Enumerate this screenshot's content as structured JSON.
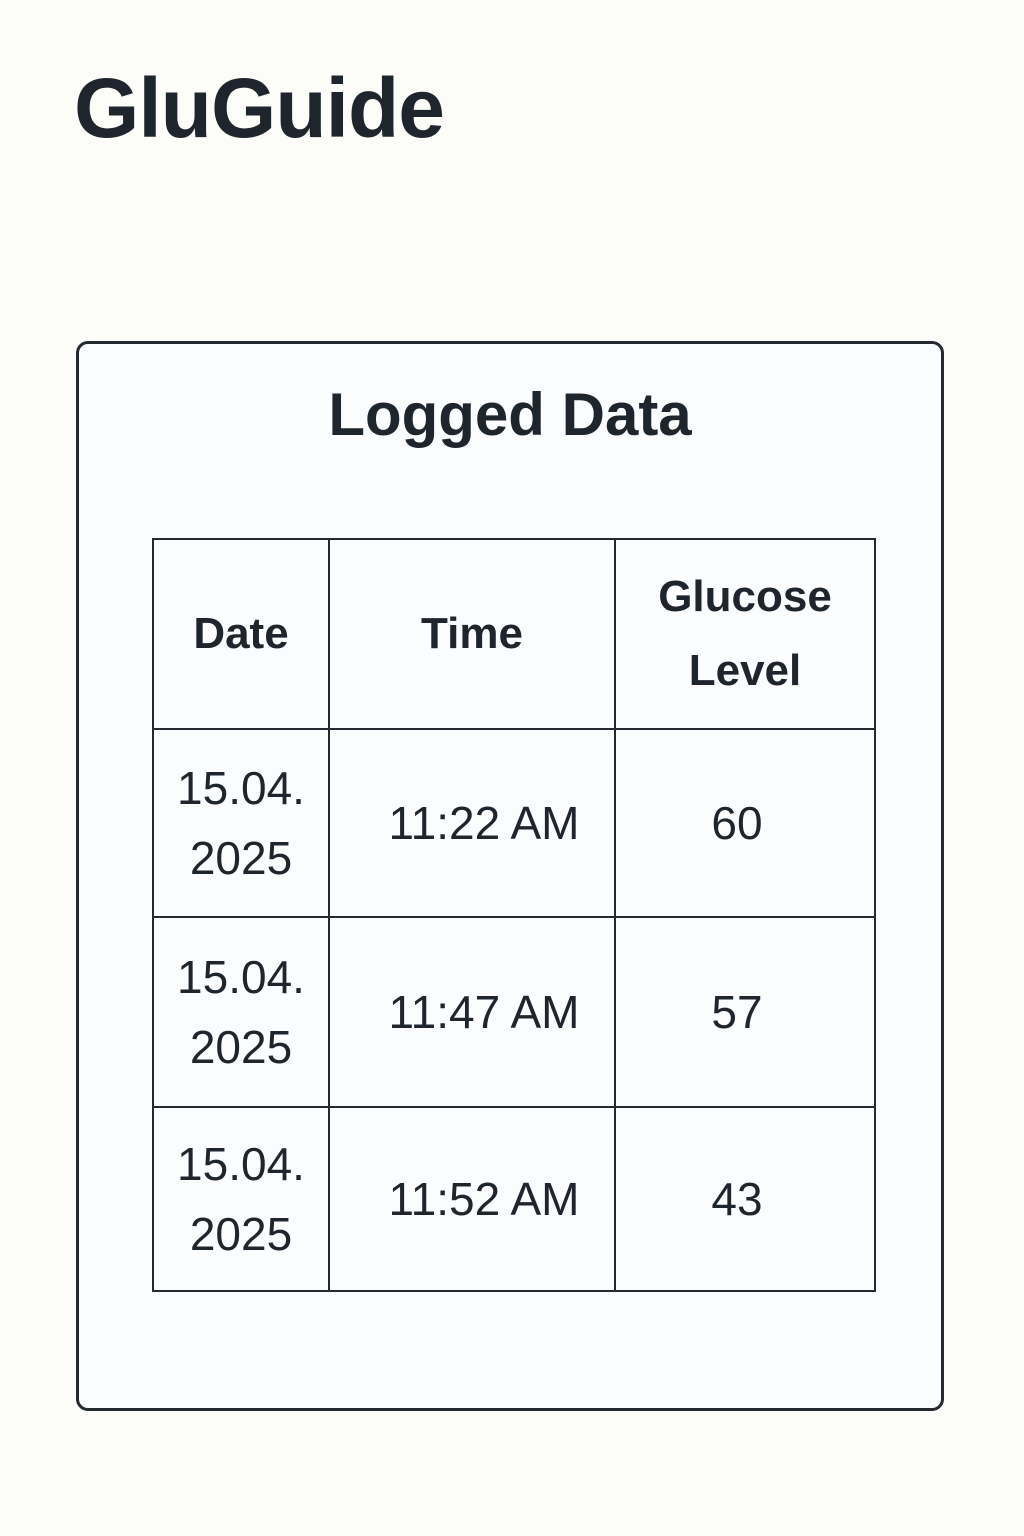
{
  "app": {
    "title": "GluGuide"
  },
  "card": {
    "title": "Logged Data"
  },
  "table": {
    "headers": {
      "date": "Date",
      "time": "Time",
      "glucose_line1": "Glucose",
      "glucose_line2": "Level"
    },
    "rows": [
      {
        "date_line1": "15.04.",
        "date_line2": "2025",
        "time": "11:22 AM",
        "glucose": "60"
      },
      {
        "date_line1": "15.04.",
        "date_line2": "2025",
        "time": "11:47 AM",
        "glucose": "57"
      },
      {
        "date_line1": "15.04.",
        "date_line2": "2025",
        "time": "11:52 AM",
        "glucose": "43"
      }
    ]
  },
  "colors": {
    "background": "#fcfcf9",
    "text": "#1f252d",
    "border": "#252a31"
  }
}
